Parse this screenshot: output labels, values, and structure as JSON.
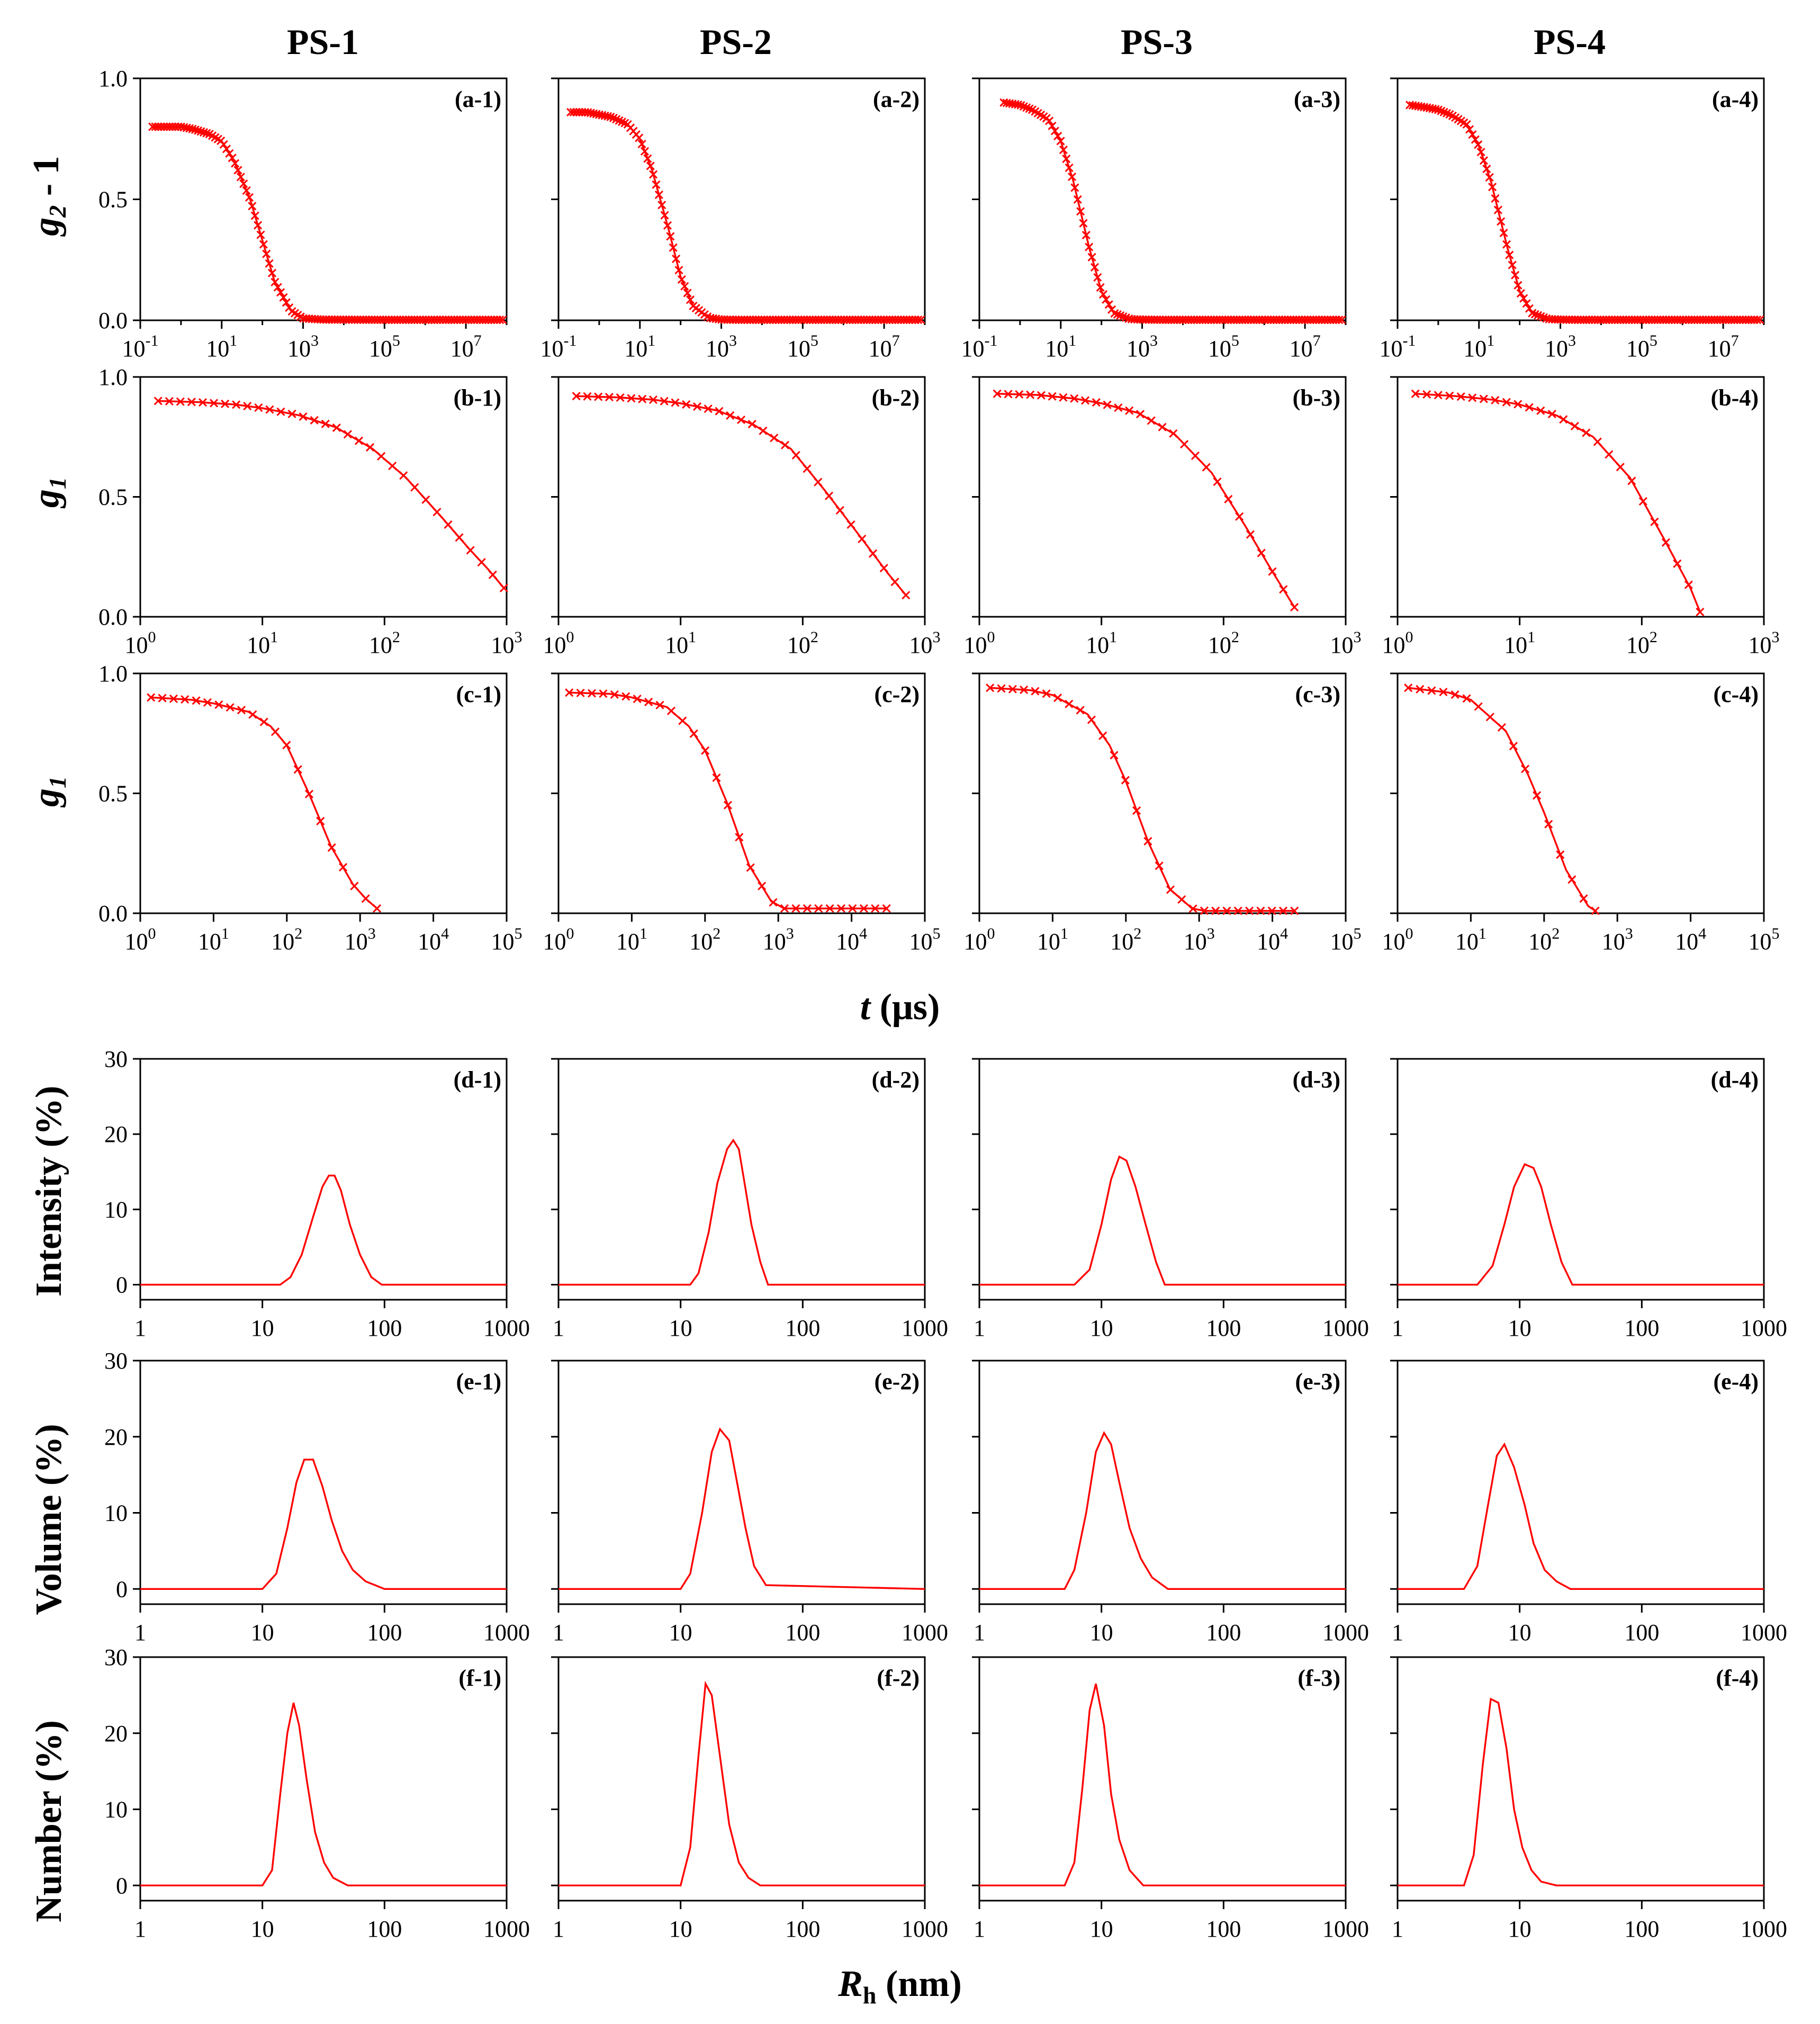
{
  "figure": {
    "column_titles": [
      "PS-1",
      "PS-2",
      "PS-3",
      "PS-4"
    ],
    "row_ylabels": [
      {
        "main": "g",
        "sub": "2",
        "suffix": " - 1"
      },
      {
        "main": "g",
        "sub": "1",
        "suffix": ""
      },
      {
        "main": "g",
        "sub": "1",
        "suffix": ""
      },
      {
        "main": "Intensity (%)",
        "sub": "",
        "suffix": ""
      },
      {
        "main": "Volume (%)",
        "sub": "",
        "suffix": ""
      },
      {
        "main": "Number  (%)",
        "sub": "",
        "suffix": ""
      }
    ],
    "time_axis_label": {
      "var": "t",
      "unit": " (μs)"
    },
    "size_axis_label": {
      "var": "R",
      "sub": "h",
      "unit": " (nm)"
    },
    "colors": {
      "series": "#ff0000",
      "axes": "#000000",
      "background": "#ffffff"
    }
  },
  "chart_data": {
    "type": "line",
    "marker": "x",
    "x_scale": "log",
    "rows": [
      {
        "id": "a",
        "quantity": "g2 - 1",
        "xlim": [
          0.1,
          100000000
        ],
        "ylim": [
          0,
          1
        ],
        "x_ticks": [
          {
            "base": "10",
            "exp": "-1"
          },
          {
            "base": "10",
            "exp": "1"
          },
          {
            "base": "10",
            "exp": "3"
          },
          {
            "base": "10",
            "exp": "5"
          },
          {
            "base": "10",
            "exp": "7"
          }
        ],
        "y_ticks": [
          "1.0",
          "0.5",
          "0.0"
        ],
        "panels": [
          {
            "label": "(a-1)",
            "x": [
              0.2,
              0.5,
              1,
              2,
              5,
              10,
              20,
              50,
              100,
              200,
              500,
              1000,
              3000,
              100000,
              80000000
            ],
            "y": [
              0.8,
              0.8,
              0.8,
              0.79,
              0.77,
              0.74,
              0.66,
              0.5,
              0.33,
              0.16,
              0.04,
              0.008,
              0.003,
              0.002,
              0.002
            ],
            "x_start": 0.2,
            "x_end": 80000000
          },
          {
            "label": "(a-2)",
            "x": [
              0.2,
              0.5,
              1,
              2,
              5,
              10,
              20,
              50,
              100,
              200,
              500,
              1000,
              3000,
              100000,
              80000000
            ],
            "y": [
              0.86,
              0.86,
              0.85,
              0.84,
              0.81,
              0.75,
              0.62,
              0.38,
              0.18,
              0.06,
              0.01,
              0.003,
              0.002,
              0.002,
              0.002
            ],
            "x_start": 0.2,
            "x_end": 80000000
          },
          {
            "label": "(a-3)",
            "x": [
              0.4,
              1,
              2,
              5,
              10,
              20,
              50,
              100,
              200,
              500,
              1000,
              3000,
              100000,
              80000000
            ],
            "y": [
              0.9,
              0.89,
              0.87,
              0.83,
              0.74,
              0.58,
              0.3,
              0.12,
              0.03,
              0.005,
              0.003,
              0.002,
              0.002,
              0.002
            ],
            "x_start": 0.4,
            "x_end": 80000000
          },
          {
            "label": "(a-4)",
            "x": [
              0.2,
              0.5,
              1,
              2,
              5,
              10,
              20,
              50,
              100,
              200,
              500,
              1000,
              3000,
              100000,
              80000000
            ],
            "y": [
              0.89,
              0.88,
              0.87,
              0.85,
              0.81,
              0.72,
              0.57,
              0.3,
              0.12,
              0.03,
              0.005,
              0.003,
              0.002,
              0.002,
              0.002
            ],
            "x_start": 0.2,
            "x_end": 80000000
          }
        ]
      },
      {
        "id": "b",
        "quantity": "g1",
        "xlim": [
          1,
          1000
        ],
        "ylim": [
          0,
          1
        ],
        "x_ticks": [
          {
            "base": "10",
            "exp": "0"
          },
          {
            "base": "10",
            "exp": "1"
          },
          {
            "base": "10",
            "exp": "2"
          },
          {
            "base": "10",
            "exp": "3"
          }
        ],
        "y_ticks": [
          "1.0",
          "0.5",
          "0.0"
        ],
        "panels": [
          {
            "label": "(b-1)",
            "x": [
              1.4,
              3,
              6,
              10,
              20,
              40,
              80,
              150,
              300,
              500,
              700,
              950
            ],
            "y": [
              0.9,
              0.895,
              0.885,
              0.87,
              0.84,
              0.79,
              0.7,
              0.58,
              0.41,
              0.28,
              0.2,
              0.12
            ],
            "x_start": 1.4,
            "x_end": 950
          },
          {
            "label": "(b-2)",
            "x": [
              1.4,
              3,
              6,
              10,
              20,
              40,
              80,
              150,
              300,
              500,
              700
            ],
            "y": [
              0.92,
              0.915,
              0.905,
              0.89,
              0.86,
              0.8,
              0.7,
              0.53,
              0.33,
              0.18,
              0.09
            ],
            "x_start": 1.4,
            "x_end": 700
          },
          {
            "label": "(b-3)",
            "x": [
              1.4,
              3,
              6,
              10,
              20,
              40,
              80,
              150,
              250,
              380
            ],
            "y": [
              0.93,
              0.925,
              0.91,
              0.89,
              0.85,
              0.76,
              0.6,
              0.38,
              0.19,
              0.04
            ],
            "x_start": 1.4,
            "x_end": 380
          },
          {
            "label": "(b-4)",
            "x": [
              1.4,
              3,
              6,
              10,
              20,
              40,
              80,
              150,
              250,
              300
            ],
            "y": [
              0.93,
              0.92,
              0.905,
              0.885,
              0.84,
              0.75,
              0.58,
              0.33,
              0.12,
              0.02
            ],
            "x_start": 1.4,
            "x_end": 300
          }
        ]
      },
      {
        "id": "c",
        "quantity": "g1",
        "xlim": [
          1,
          100000
        ],
        "ylim": [
          0,
          1
        ],
        "x_ticks": [
          {
            "base": "10",
            "exp": "0"
          },
          {
            "base": "10",
            "exp": "1"
          },
          {
            "base": "10",
            "exp": "2"
          },
          {
            "base": "10",
            "exp": "3"
          },
          {
            "base": "10",
            "exp": "4"
          },
          {
            "base": "10",
            "exp": "5"
          }
        ],
        "y_ticks": [
          "1.0",
          "0.5",
          "0.0"
        ],
        "panels": [
          {
            "label": "(c-1)",
            "x": [
              1.4,
              5,
              10,
              30,
              60,
              100,
              200,
              400,
              800,
              1200,
              1700
            ],
            "y": [
              0.9,
              0.89,
              0.875,
              0.84,
              0.78,
              0.7,
              0.5,
              0.28,
              0.12,
              0.06,
              0.02
            ],
            "x_start": 1.4,
            "x_end": 1700
          },
          {
            "label": "(c-2)",
            "x": [
              1.4,
              5,
              10,
              30,
              60,
              100,
              200,
              400,
              800,
              1200,
              2000,
              10000,
              30000
            ],
            "y": [
              0.92,
              0.915,
              0.9,
              0.86,
              0.78,
              0.68,
              0.46,
              0.2,
              0.05,
              0.02,
              0.02,
              0.02,
              0.02
            ],
            "x_start": 1.4,
            "x_end": 30000
          },
          {
            "label": "(c-3)",
            "x": [
              1.4,
              5,
              10,
              30,
              60,
              100,
              200,
              400,
              800,
              1200,
              5000,
              20000
            ],
            "y": [
              0.94,
              0.93,
              0.91,
              0.83,
              0.7,
              0.55,
              0.3,
              0.1,
              0.02,
              0.01,
              0.01,
              0.01
            ],
            "x_start": 1.4,
            "x_end": 20000
          },
          {
            "label": "(c-4)",
            "x": [
              1.4,
              5,
              10,
              30,
              60,
              100,
              200,
              400,
              500
            ],
            "y": [
              0.94,
              0.92,
              0.89,
              0.76,
              0.58,
              0.42,
              0.18,
              0.03,
              0.01
            ],
            "x_start": 1.4,
            "x_end": 500
          }
        ]
      },
      {
        "id": "d",
        "quantity": "Intensity (%)",
        "xlim": [
          1,
          1000
        ],
        "ylim": [
          -2,
          30
        ],
        "x_ticks": [
          {
            "base": "1",
            "exp": ""
          },
          {
            "base": "10",
            "exp": ""
          },
          {
            "base": "100",
            "exp": ""
          },
          {
            "base": "1000",
            "exp": ""
          }
        ],
        "y_ticks": [
          "30",
          "20",
          "10",
          "0"
        ],
        "panels": [
          {
            "label": "(d-1)",
            "x": [
              1,
              14,
              17,
              21,
              26,
              31,
              35,
              39,
              44,
              52,
              63,
              78,
              95,
              1000
            ],
            "y": [
              0,
              0,
              1,
              4,
              9,
              13,
              14.5,
              14.5,
              12.5,
              8,
              4,
              1,
              0,
              0
            ]
          },
          {
            "label": "(d-2)",
            "x": [
              1,
              12,
              14,
              17,
              20,
              24,
              27,
              30,
              33,
              38,
              45,
              52,
              1000
            ],
            "y": [
              0,
              0,
              1.5,
              7,
              13.5,
              18,
              19.2,
              18,
              14,
              8,
              3,
              0,
              0
            ]
          },
          {
            "label": "(d-3)",
            "x": [
              1,
              6,
              8,
              10,
              12,
              14,
              16,
              19,
              23,
              28,
              33,
              1000
            ],
            "y": [
              0,
              0,
              2,
              8,
              14,
              17,
              16.5,
              13,
              8,
              3,
              0,
              0
            ]
          },
          {
            "label": "(d-4)",
            "x": [
              1,
              4.5,
              6,
              7.5,
              9,
              11,
              13,
              15,
              18,
              22,
              27,
              1000
            ],
            "y": [
              0,
              0,
              2.5,
              8,
              13,
              16,
              15.5,
              13,
              8,
              3,
              0,
              0
            ]
          }
        ]
      },
      {
        "id": "e",
        "quantity": "Volume (%)",
        "xlim": [
          1,
          1000
        ],
        "ylim": [
          -2,
          30
        ],
        "x_ticks": [
          {
            "base": "1",
            "exp": ""
          },
          {
            "base": "10",
            "exp": ""
          },
          {
            "base": "100",
            "exp": ""
          },
          {
            "base": "1000",
            "exp": ""
          }
        ],
        "y_ticks": [
          "30",
          "20",
          "10",
          "0"
        ],
        "panels": [
          {
            "label": "(e-1)",
            "x": [
              1,
              10,
              13,
              16,
              19,
              22,
              26,
              31,
              37,
              45,
              55,
              70,
              100,
              1000
            ],
            "y": [
              0,
              0,
              2,
              8,
              14,
              17,
              17,
              13.5,
              9,
              5,
              2.5,
              1,
              0,
              0
            ]
          },
          {
            "label": "(e-2)",
            "x": [
              1,
              10,
              12,
              15,
              18,
              21,
              25,
              29,
              34,
              40,
              50,
              1000
            ],
            "y": [
              0,
              0,
              2,
              10,
              18,
              21,
              19.5,
              14,
              8,
              3,
              0.5,
              0
            ]
          },
          {
            "label": "(e-3)",
            "x": [
              1,
              5,
              6,
              7.5,
              9,
              10.5,
              12,
              14,
              17,
              21,
              26,
              35,
              1000
            ],
            "y": [
              0,
              0,
              2.5,
              10,
              18,
              20.5,
              19,
              14,
              8,
              4,
              1.5,
              0,
              0
            ]
          },
          {
            "label": "(e-4)",
            "x": [
              1,
              3.5,
              4.5,
              5.5,
              6.5,
              7.5,
              9,
              11,
              13,
              16,
              20,
              26,
              1000
            ],
            "y": [
              0,
              0,
              3,
              11,
              17.5,
              19,
              16,
              11,
              6,
              2.5,
              1,
              0,
              0
            ]
          }
        ]
      },
      {
        "id": "f",
        "quantity": "Number (%)",
        "xlim": [
          1,
          1000
        ],
        "ylim": [
          -2,
          30
        ],
        "x_ticks": [
          {
            "base": "1",
            "exp": ""
          },
          {
            "base": "10",
            "exp": ""
          },
          {
            "base": "100",
            "exp": ""
          },
          {
            "base": "1000",
            "exp": ""
          }
        ],
        "y_ticks": [
          "30",
          "20",
          "10",
          "0"
        ],
        "panels": [
          {
            "label": "(f-1)",
            "x": [
              1,
              10,
              12,
              14,
              16,
              18,
              20,
              23,
              27,
              32,
              38,
              50,
              1000
            ],
            "y": [
              0,
              0,
              2,
              12,
              20,
              24,
              21,
              14,
              7,
              3,
              1,
              0,
              0
            ]
          },
          {
            "label": "(f-2)",
            "x": [
              1,
              10,
              12,
              14,
              16,
              18,
              21,
              25,
              30,
              36,
              45,
              1000
            ],
            "y": [
              0,
              0,
              5,
              17,
              26.5,
              25,
              17,
              8,
              3,
              1,
              0,
              0
            ]
          },
          {
            "label": "(f-3)",
            "x": [
              1,
              5,
              6,
              7,
              8,
              9,
              10.5,
              12,
              14,
              17,
              22,
              1000
            ],
            "y": [
              0,
              0,
              3,
              13,
              23,
              26.5,
              21,
              12,
              6,
              2,
              0,
              0
            ]
          },
          {
            "label": "(f-4)",
            "x": [
              1,
              3.5,
              4.2,
              5,
              5.8,
              6.7,
              7.8,
              9,
              10.5,
              12.5,
              15,
              20,
              1000
            ],
            "y": [
              0,
              0,
              4,
              16,
              24.5,
              24,
              18,
              10,
              5,
              2,
              0.5,
              0,
              0
            ]
          }
        ]
      }
    ]
  }
}
